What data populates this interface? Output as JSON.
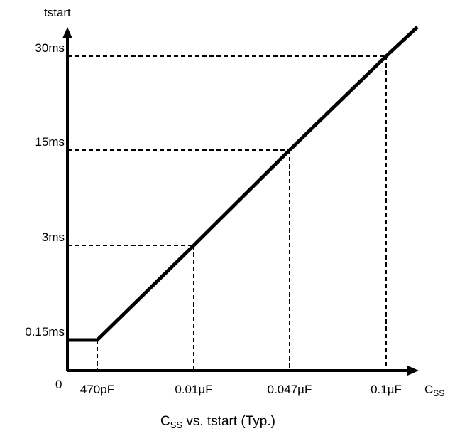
{
  "chart_data": {
    "type": "line",
    "title": "",
    "caption": {
      "main": "C",
      "sub": "SS",
      "rest": " vs. tstart (Typ.)"
    },
    "ylabel": "tstart",
    "xlabel": {
      "main": "C",
      "sub": "SS"
    },
    "origin_label": "0",
    "x_tick_labels": [
      "470pF",
      "0.01µF",
      "0.047µF",
      "0.1µF"
    ],
    "y_tick_labels": [
      "0.15ms",
      "3ms",
      "15ms",
      "30ms"
    ],
    "y_ticks": [
      {
        "label": "0.15ms",
        "level": 0.15
      },
      {
        "label": "3ms",
        "level": 3
      },
      {
        "label": "15ms",
        "level": 15
      },
      {
        "label": "30ms",
        "level": 30
      }
    ],
    "series": [
      {
        "points": [
          {
            "x": 0,
            "y": 0.15
          },
          {
            "x": 470,
            "y": 0.15
          },
          {
            "x": 10000,
            "y": 3
          },
          {
            "x": 47000,
            "y": 15
          },
          {
            "x": 100000,
            "y": 30
          }
        ]
      }
    ],
    "axis_note": "x and y axes are not to scale; ticks are evenly spaced categories",
    "colors": {
      "line": "#000000",
      "axis": "#000000",
      "guide": "#000000"
    },
    "grid": false,
    "legend": "none"
  }
}
